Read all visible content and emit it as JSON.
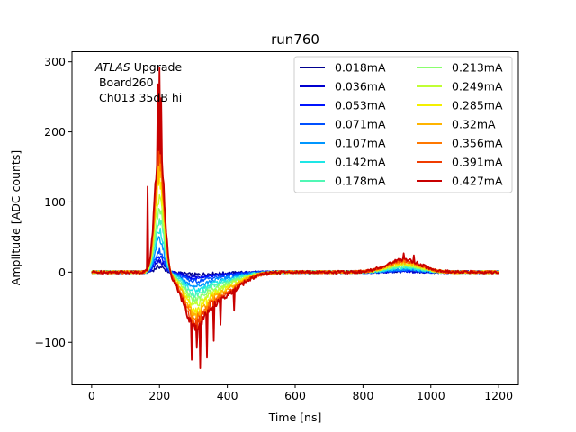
{
  "chart_data": {
    "type": "line",
    "title": "run760",
    "xlabel": "Time [ns]",
    "ylabel": "Amplitude [ADC counts]",
    "xlim": [
      -58,
      1258
    ],
    "ylim": [
      -160,
      315
    ],
    "x_ticks": [
      0,
      200,
      400,
      600,
      800,
      1000,
      1200
    ],
    "y_ticks": [
      -100,
      0,
      100,
      200,
      300
    ],
    "y_tick_labels": [
      "−100",
      "0",
      "100",
      "200",
      "300"
    ],
    "grid": false,
    "legend_position": "top-right",
    "legend_columns": 2,
    "annotation": {
      "line1_italic": "ATLAS",
      "line1_rest": " Upgrade",
      "line2": " Board260",
      "line3": " Ch013 35dB hi"
    },
    "pulse_model": {
      "x_range": [
        0,
        1200
      ],
      "x_step": 2.5,
      "peak_time_ns": 200,
      "undershoot_time_ns": 300,
      "late_bump_time_ns": 920,
      "peak_amplitude_max": 185,
      "undershoot_amplitude_max": -92,
      "late_bump_amplitude_max": 18,
      "spike_max": [
        {
          "x": 200,
          "y": 292
        },
        {
          "x": 195,
          "y": 268
        },
        {
          "x": 205,
          "y": 248
        },
        {
          "x": 165,
          "y": 122
        },
        {
          "x": 295,
          "y": -125
        },
        {
          "x": 320,
          "y": -137
        },
        {
          "x": 340,
          "y": -122
        },
        {
          "x": 310,
          "y": -108
        },
        {
          "x": 360,
          "y": -98
        },
        {
          "x": 380,
          "y": -75
        },
        {
          "x": 420,
          "y": -55
        },
        {
          "x": 920,
          "y": 27
        },
        {
          "x": 950,
          "y": 24
        }
      ]
    },
    "series": [
      {
        "name": "0.018mA",
        "color": "#00008f",
        "scale": 0.042
      },
      {
        "name": "0.036mA",
        "color": "#0000d0",
        "scale": 0.084
      },
      {
        "name": "0.053mA",
        "color": "#0014ff",
        "scale": 0.124
      },
      {
        "name": "0.071mA",
        "color": "#0050ff",
        "scale": 0.166
      },
      {
        "name": "0.107mA",
        "color": "#0096ff",
        "scale": 0.251
      },
      {
        "name": "0.142mA",
        "color": "#1ee6e6",
        "scale": 0.333
      },
      {
        "name": "0.178mA",
        "color": "#50f7b5",
        "scale": 0.417
      },
      {
        "name": "0.213mA",
        "color": "#8aff6e",
        "scale": 0.499
      },
      {
        "name": "0.249mA",
        "color": "#c0ff34",
        "scale": 0.583
      },
      {
        "name": "0.285mA",
        "color": "#f4f000",
        "scale": 0.667
      },
      {
        "name": "0.32mA",
        "color": "#ffb400",
        "scale": 0.749
      },
      {
        "name": "0.356mA",
        "color": "#ff7800",
        "scale": 0.834
      },
      {
        "name": "0.391mA",
        "color": "#f03c00",
        "scale": 0.916
      },
      {
        "name": "0.427mA",
        "color": "#c80000",
        "scale": 1.0
      }
    ]
  }
}
